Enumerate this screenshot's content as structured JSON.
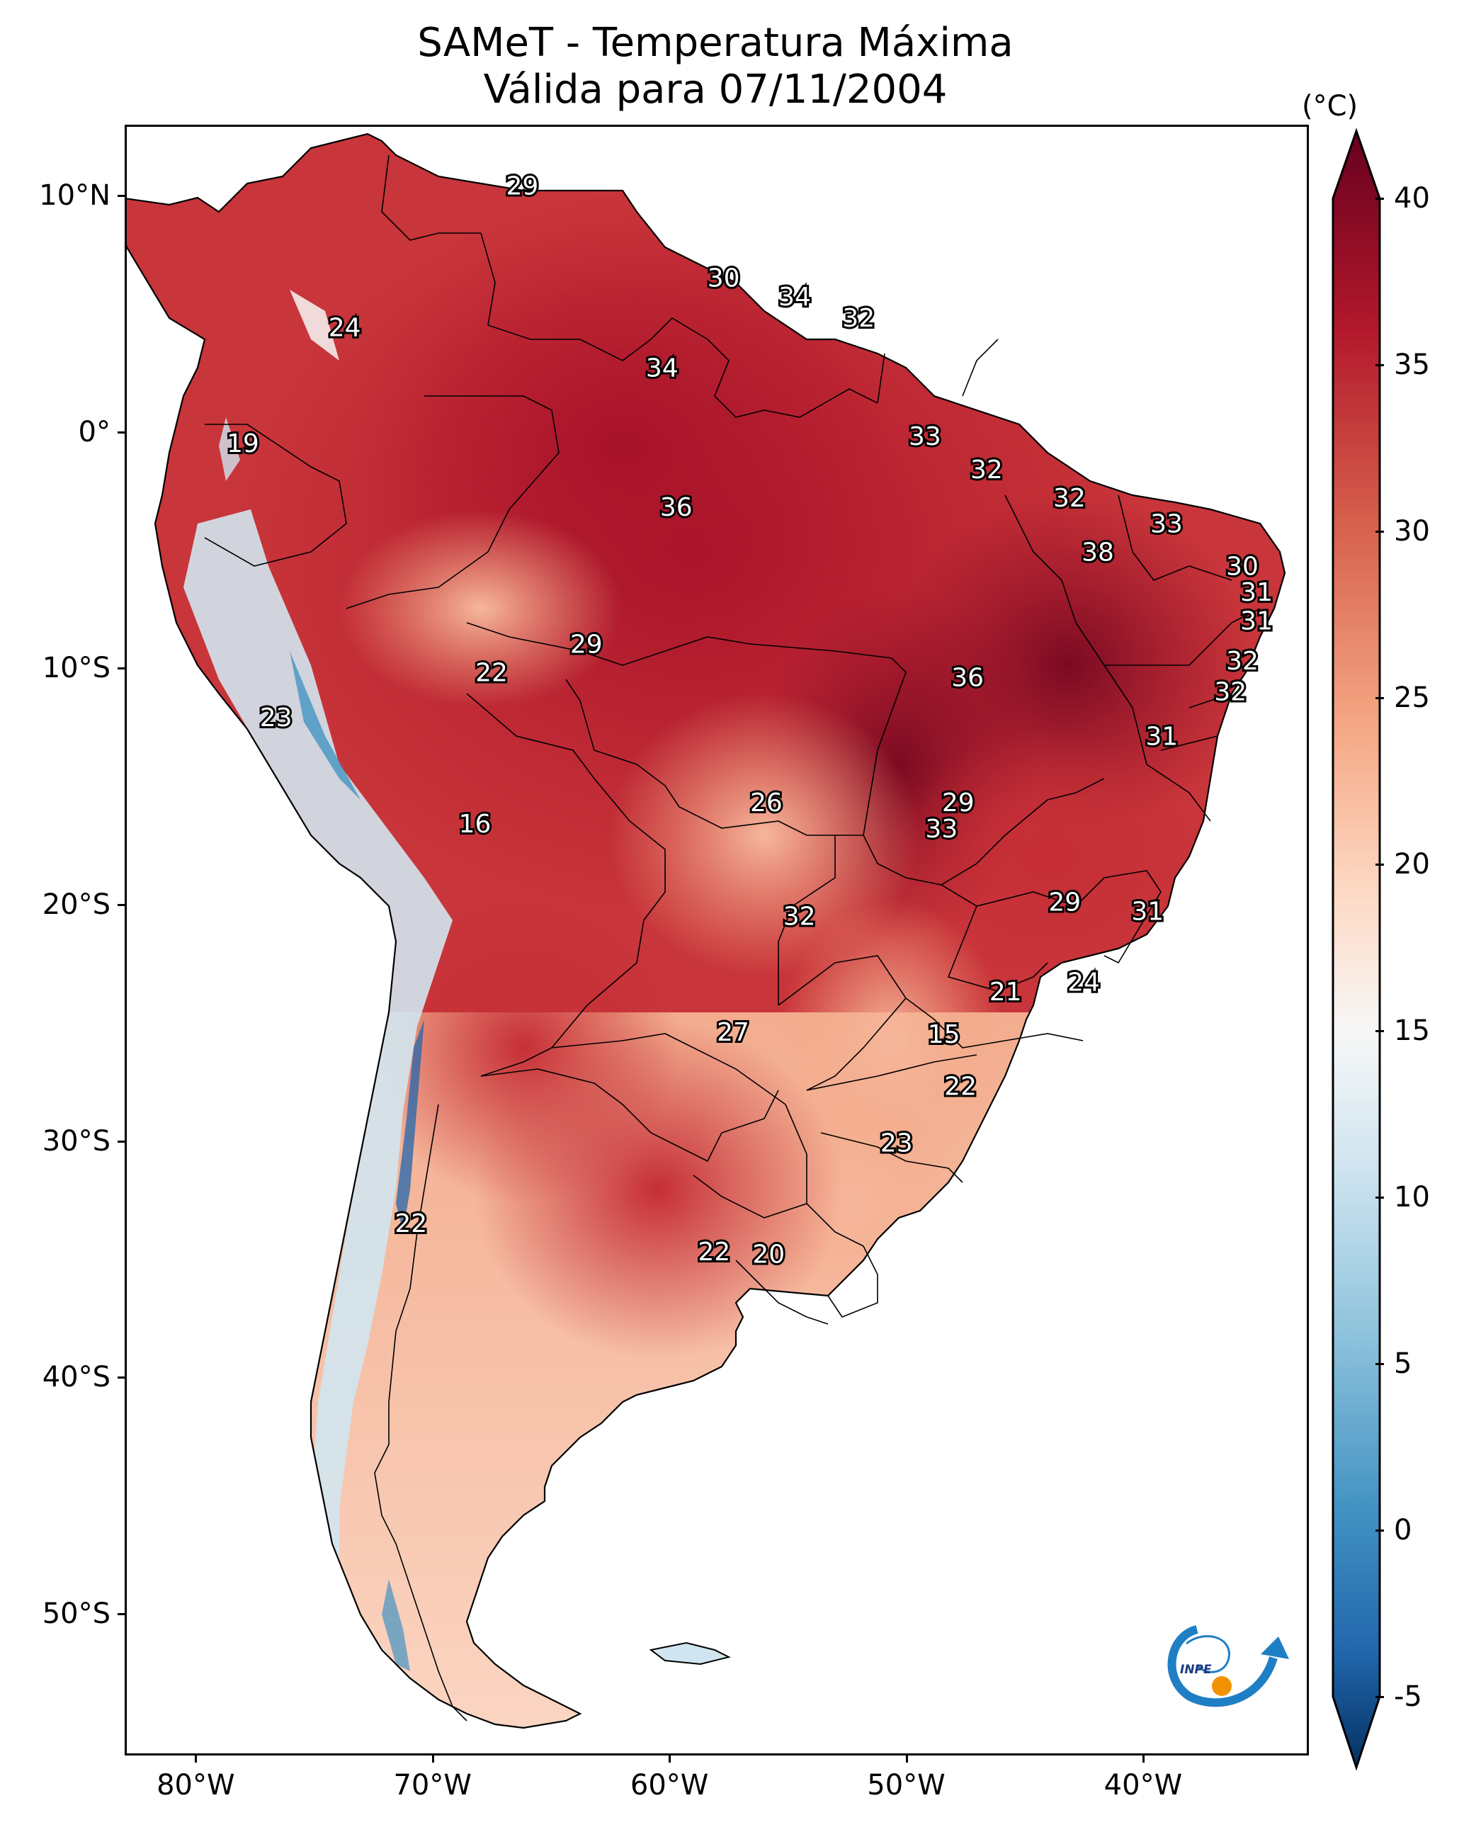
{
  "title": {
    "line1": "SAMeT - Temperatura Máxima",
    "line2": "Válida para 07/11/2004"
  },
  "axes": {
    "lat_ticks": [
      {
        "value": 10,
        "label": "10°N"
      },
      {
        "value": 0,
        "label": "0°"
      },
      {
        "value": -10,
        "label": "10°S"
      },
      {
        "value": -20,
        "label": "20°S"
      },
      {
        "value": -30,
        "label": "30°S"
      },
      {
        "value": -40,
        "label": "40°S"
      },
      {
        "value": -50,
        "label": "50°S"
      }
    ],
    "lon_ticks": [
      {
        "value": -80,
        "label": "80°W"
      },
      {
        "value": -70,
        "label": "70°W"
      },
      {
        "value": -60,
        "label": "60°W"
      },
      {
        "value": -50,
        "label": "50°W"
      },
      {
        "value": -40,
        "label": "40°W"
      }
    ],
    "lon_range": [
      -83,
      -33
    ],
    "lat_range": [
      -56,
      13
    ]
  },
  "colorbar": {
    "unit": "(°C)",
    "range": [
      -5,
      40
    ],
    "ticks": [
      {
        "value": 40,
        "label": "40"
      },
      {
        "value": 35,
        "label": "35"
      },
      {
        "value": 30,
        "label": "30"
      },
      {
        "value": 25,
        "label": "25"
      },
      {
        "value": 20,
        "label": "20"
      },
      {
        "value": 15,
        "label": "15"
      },
      {
        "value": 10,
        "label": "10"
      },
      {
        "value": 5,
        "label": "5"
      },
      {
        "value": 0,
        "label": "0"
      },
      {
        "value": -5,
        "label": "-5"
      }
    ],
    "colors": [
      "#053061",
      "#2166ac",
      "#4393c3",
      "#92c5de",
      "#d1e5f0",
      "#f7f7f7",
      "#fddbc7",
      "#f4a582",
      "#d6604d",
      "#b2182b",
      "#67001f"
    ]
  },
  "map_labels": [
    {
      "text": "29",
      "lon": -66.3,
      "lat": 10.5
    },
    {
      "text": "30",
      "lon": -57.8,
      "lat": 6.6
    },
    {
      "text": "34",
      "lon": -54.8,
      "lat": 5.8
    },
    {
      "text": "32",
      "lon": -52.1,
      "lat": 4.9
    },
    {
      "text": "24",
      "lon": -73.8,
      "lat": 4.5
    },
    {
      "text": "34",
      "lon": -60.4,
      "lat": 2.8
    },
    {
      "text": "33",
      "lon": -49.3,
      "lat": -0.1
    },
    {
      "text": "19",
      "lon": -78.1,
      "lat": -0.4
    },
    {
      "text": "32",
      "lon": -46.7,
      "lat": -1.5
    },
    {
      "text": "32",
      "lon": -43.2,
      "lat": -2.7
    },
    {
      "text": "36",
      "lon": -59.8,
      "lat": -3.1
    },
    {
      "text": "33",
      "lon": -39.1,
      "lat": -3.8
    },
    {
      "text": "38",
      "lon": -42.0,
      "lat": -5.0
    },
    {
      "text": "30",
      "lon": -35.9,
      "lat": -5.6
    },
    {
      "text": "31",
      "lon": -35.3,
      "lat": -6.7
    },
    {
      "text": "31",
      "lon": -35.3,
      "lat": -7.9
    },
    {
      "text": "29",
      "lon": -63.6,
      "lat": -8.9
    },
    {
      "text": "32",
      "lon": -35.9,
      "lat": -9.6
    },
    {
      "text": "22",
      "lon": -67.6,
      "lat": -10.1
    },
    {
      "text": "36",
      "lon": -47.5,
      "lat": -10.3
    },
    {
      "text": "32",
      "lon": -36.4,
      "lat": -10.9
    },
    {
      "text": "23",
      "lon": -76.7,
      "lat": -12.0
    },
    {
      "text": "31",
      "lon": -39.3,
      "lat": -12.8
    },
    {
      "text": "26",
      "lon": -56.0,
      "lat": -15.6
    },
    {
      "text": "29",
      "lon": -47.9,
      "lat": -15.6
    },
    {
      "text": "16",
      "lon": -68.3,
      "lat": -16.5
    },
    {
      "text": "33",
      "lon": -48.6,
      "lat": -16.7
    },
    {
      "text": "29",
      "lon": -43.4,
      "lat": -19.8
    },
    {
      "text": "32",
      "lon": -54.6,
      "lat": -20.4
    },
    {
      "text": "31",
      "lon": -39.9,
      "lat": -20.2
    },
    {
      "text": "24",
      "lon": -42.6,
      "lat": -23.2
    },
    {
      "text": "21",
      "lon": -45.9,
      "lat": -23.6
    },
    {
      "text": "15",
      "lon": -48.5,
      "lat": -25.4
    },
    {
      "text": "27",
      "lon": -57.4,
      "lat": -25.3
    },
    {
      "text": "22",
      "lon": -47.8,
      "lat": -27.6
    },
    {
      "text": "23",
      "lon": -50.5,
      "lat": -30.0
    },
    {
      "text": "22",
      "lon": -71.0,
      "lat": -33.4
    },
    {
      "text": "22",
      "lon": -58.2,
      "lat": -34.6
    },
    {
      "text": "20",
      "lon": -55.9,
      "lat": -34.7
    }
  ],
  "logo": {
    "text": "INPE"
  }
}
